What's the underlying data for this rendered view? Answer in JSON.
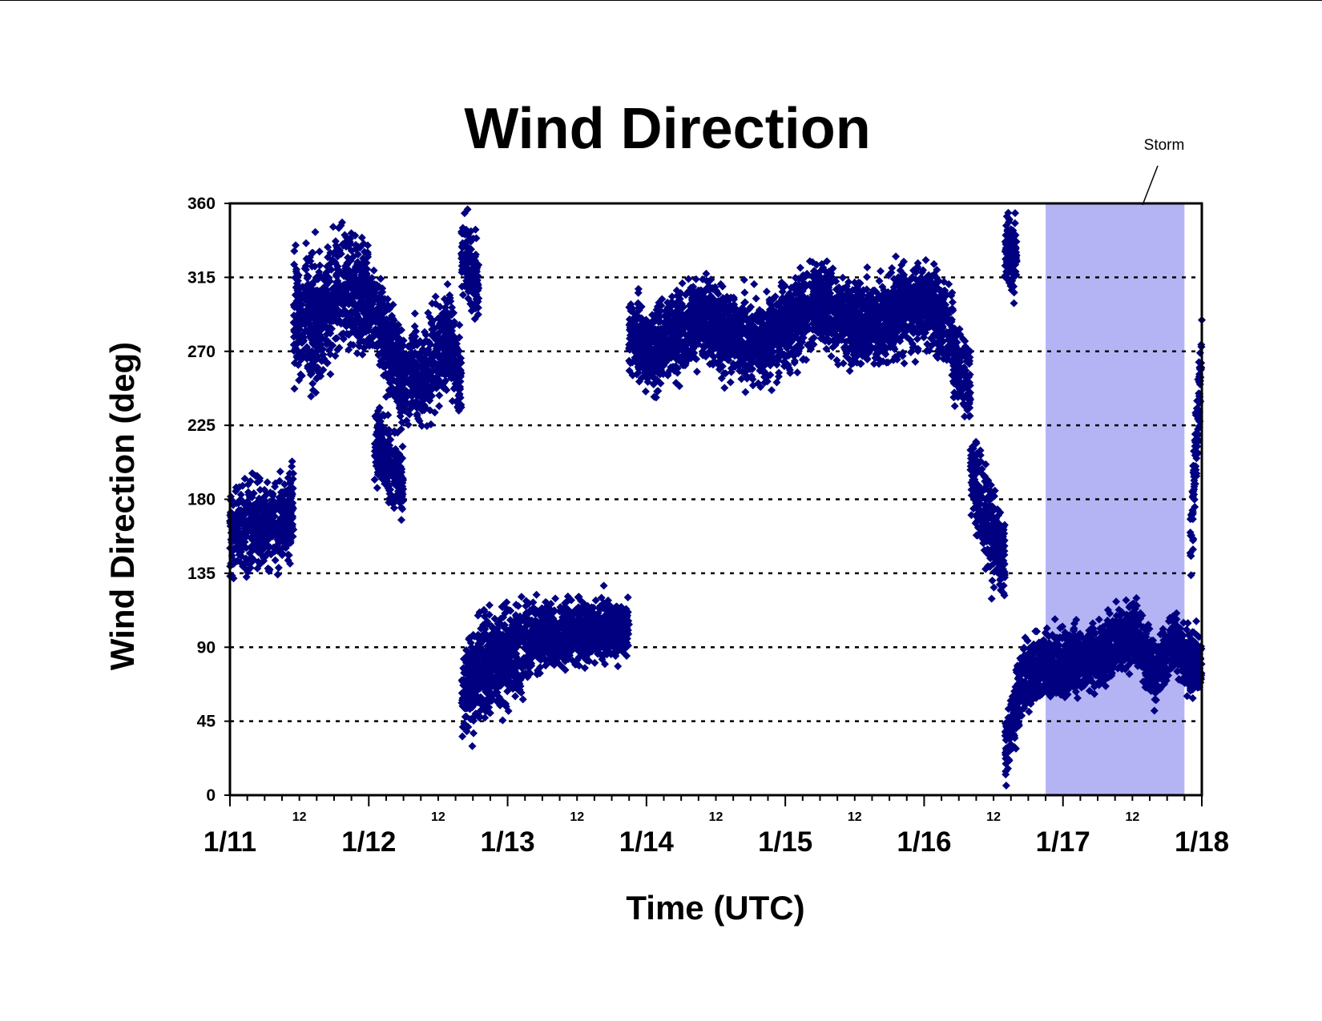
{
  "chart_data": {
    "type": "scatter",
    "title": "Wind Direction",
    "xlabel": "Time (UTC)",
    "ylabel": "Wind Direction (deg)",
    "ylim": [
      0,
      360
    ],
    "yticks": [
      0,
      45,
      90,
      135,
      180,
      225,
      270,
      315,
      360
    ],
    "grid": "horizontal dashed at each y tick",
    "marker": "diamond",
    "colors": {
      "points": "#000080",
      "storm_band": "#b4b4f5",
      "grid": "#000000"
    },
    "x_axis": {
      "unit": "days",
      "range": [
        "1/11",
        "1/18"
      ],
      "day_labels": [
        "1/11",
        "1/12",
        "1/13",
        "1/14",
        "1/15",
        "1/16",
        "1/17",
        "1/18"
      ],
      "hour_label": "12"
    },
    "annotation": {
      "text": "Storm",
      "shaded_range": [
        "1/16 21:00",
        "1/17 21:00"
      ]
    },
    "series": [
      {
        "segments": [
          {
            "start": "1/11 00:00",
            "end": "1/11 11:00",
            "mean": [
              [
                0,
                160
              ],
              [
                8,
                165
              ],
              [
                11,
                175
              ]
            ],
            "spread": 28
          },
          {
            "start": "1/11 11:00",
            "end": "1/12 00:00",
            "mean": [
              [
                11,
                290
              ],
              [
                16,
                290
              ],
              [
                20,
                315
              ],
              [
                24,
                300
              ]
            ],
            "spread": 40
          },
          {
            "start": "1/12 00:00",
            "end": "1/12 16:00",
            "mean": [
              [
                0,
                300
              ],
              [
                6,
                255
              ],
              [
                10,
                255
              ],
              [
                14,
                280
              ],
              [
                16,
                250
              ]
            ],
            "spread": 30
          },
          {
            "start": "1/12 01:00",
            "end": "1/12 06:00",
            "mean": [
              [
                1,
                215
              ],
              [
                6,
                190
              ]
            ],
            "spread": 25
          },
          {
            "start": "1/12 16:00",
            "end": "1/12 19:00",
            "mean": [
              [
                16,
                330
              ],
              [
                19,
                310
              ]
            ],
            "spread": 25
          },
          {
            "start": "1/12 16:00",
            "end": "1/13 04:00",
            "mean": [
              [
                16,
                60
              ],
              [
                20,
                80
              ],
              [
                24,
                85
              ],
              [
                28,
                95
              ]
            ],
            "spread": 32
          },
          {
            "start": "1/13 04:00",
            "end": "1/13 21:00",
            "mean": [
              [
                4,
                95
              ],
              [
                12,
                100
              ],
              [
                21,
                100
              ]
            ],
            "spread": 20
          },
          {
            "start": "1/13 21:00",
            "end": "1/14 01:00",
            "mean": [
              [
                21,
                280
              ],
              [
                25,
                270
              ]
            ],
            "spread": 25
          },
          {
            "start": "1/14 01:00",
            "end": "1/15 12:00",
            "mean": [
              [
                1,
                270
              ],
              [
                9,
                290
              ],
              [
                20,
                275
              ],
              [
                30,
                300
              ],
              [
                36,
                285
              ]
            ],
            "spread": 28
          },
          {
            "start": "1/15 12:00",
            "end": "1/16 05:00",
            "mean": [
              [
                12,
                285
              ],
              [
                24,
                300
              ],
              [
                29,
                280
              ]
            ],
            "spread": 28
          },
          {
            "start": "1/16 05:00",
            "end": "1/16 08:00",
            "mean": [
              [
                5,
                265
              ],
              [
                8,
                250
              ]
            ],
            "spread": 25
          },
          {
            "start": "1/16 08:00",
            "end": "1/16 14:00",
            "mean": [
              [
                8,
                200
              ],
              [
                11,
                165
              ],
              [
                14,
                145
              ]
            ],
            "spread": 30
          },
          {
            "start": "1/16 14:00",
            "end": "1/16 16:00",
            "mean": [
              [
                14,
                330
              ],
              [
                16,
                325
              ]
            ],
            "spread": 25
          },
          {
            "start": "1/16 14:00",
            "end": "1/17 00:00",
            "mean": [
              [
                14,
                30
              ],
              [
                17,
                70
              ],
              [
                21,
                80
              ],
              [
                24,
                80
              ]
            ],
            "spread": 22
          },
          {
            "start": "1/17 00:00",
            "end": "1/18 00:00",
            "mean": [
              [
                0,
                80
              ],
              [
                6,
                85
              ],
              [
                12,
                100
              ],
              [
                16,
                75
              ],
              [
                19,
                95
              ],
              [
                22,
                80
              ],
              [
                24,
                80
              ]
            ],
            "spread": 20
          },
          {
            "start": "1/17 22:00",
            "end": "1/18 00:00",
            "mean": [
              [
                22,
                150
              ],
              [
                24,
                270
              ]
            ],
            "spread": 30
          }
        ]
      }
    ]
  }
}
